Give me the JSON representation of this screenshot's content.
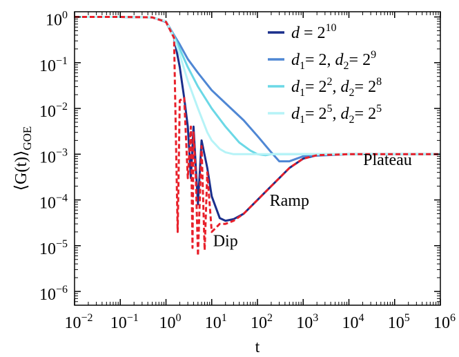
{
  "chart_data": {
    "type": "line",
    "xscale": "log",
    "yscale": "log",
    "xlim": [
      0.01,
      1000000
    ],
    "ylim": [
      5e-07,
      1.3
    ],
    "xlabel": "t",
    "ylabel": "⟨G(t)⟩",
    "ylabel_sub": "GOE",
    "x_ticks": [
      {
        "base": "10",
        "exp": "−2",
        "value": 0.01
      },
      {
        "base": "10",
        "exp": "−1",
        "value": 0.1
      },
      {
        "base": "10",
        "exp": "0",
        "value": 1
      },
      {
        "base": "10",
        "exp": "1",
        "value": 10
      },
      {
        "base": "10",
        "exp": "2",
        "value": 100
      },
      {
        "base": "10",
        "exp": "3",
        "value": 1000
      },
      {
        "base": "10",
        "exp": "4",
        "value": 10000
      },
      {
        "base": "10",
        "exp": "5",
        "value": 100000
      },
      {
        "base": "10",
        "exp": "6",
        "value": 1000000
      }
    ],
    "y_ticks": [
      {
        "base": "10",
        "exp": "0",
        "value": 1
      },
      {
        "base": "10",
        "exp": "−1",
        "value": 0.1
      },
      {
        "base": "10",
        "exp": "−2",
        "value": 0.01
      },
      {
        "base": "10",
        "exp": "−3",
        "value": 0.001
      },
      {
        "base": "10",
        "exp": "−4",
        "value": 0.0001
      },
      {
        "base": "10",
        "exp": "−5",
        "value": 1e-05
      },
      {
        "base": "10",
        "exp": "−6",
        "value": 1e-06
      }
    ],
    "legend_position": "top-right",
    "series": [
      {
        "name": "d = 2^10",
        "legend": {
          "parts": [
            {
              "t": "d",
              "style": "italic"
            },
            {
              "t": " = 2"
            },
            {
              "t": "10",
              "style": "sup"
            }
          ]
        },
        "color": "#1a2f8c",
        "style": "solid",
        "x": [
          0.01,
          0.1,
          0.5,
          1.0,
          1.5,
          2.0,
          2.5,
          3.0,
          3.5,
          4.0,
          5.0,
          6.0,
          8.0,
          10.0,
          15.0,
          20.0,
          30.0,
          50.0,
          100.0,
          200.0,
          500.0,
          1000.0,
          2000.0,
          10000.0,
          100000.0,
          1000000.0
        ],
        "y": [
          1.0,
          1.0,
          0.98,
          0.78,
          0.35,
          0.08,
          0.017,
          0.004,
          0.0003,
          0.004,
          8e-05,
          0.002,
          0.0005,
          0.00012,
          4e-05,
          3.5e-05,
          3.8e-05,
          5e-05,
          0.0001,
          0.0002,
          0.0005,
          0.0008,
          0.00095,
          0.001,
          0.001,
          0.001
        ]
      },
      {
        "name": "d1= 2, d2= 2^9",
        "legend": {
          "parts": [
            {
              "t": "d",
              "style": "italic"
            },
            {
              "t": "1",
              "style": "sub"
            },
            {
              "t": "= 2, "
            },
            {
              "t": "d",
              "style": "italic"
            },
            {
              "t": "2",
              "style": "sub"
            },
            {
              "t": "= 2"
            },
            {
              "t": "9",
              "style": "sup"
            }
          ]
        },
        "color": "#4f87d4",
        "style": "solid",
        "x": [
          0.01,
          0.1,
          0.5,
          1.0,
          1.5,
          2.0,
          3.0,
          5.0,
          10.0,
          20.0,
          50.0,
          100.0,
          200.0,
          300.0,
          500.0,
          1000.0,
          10000.0,
          1000000.0
        ],
        "y": [
          1.0,
          1.0,
          0.98,
          0.8,
          0.4,
          0.25,
          0.12,
          0.06,
          0.025,
          0.013,
          0.0055,
          0.0025,
          0.0011,
          0.0007,
          0.0007,
          0.0009,
          0.001,
          0.001
        ]
      },
      {
        "name": "d1= 2^2, d2= 2^8",
        "legend": {
          "parts": [
            {
              "t": "d",
              "style": "italic"
            },
            {
              "t": "1",
              "style": "sub"
            },
            {
              "t": "= 2"
            },
            {
              "t": "2",
              "style": "sup"
            },
            {
              "t": ", "
            },
            {
              "t": "d",
              "style": "italic"
            },
            {
              "t": "2",
              "style": "sub"
            },
            {
              "t": "= 2"
            },
            {
              "t": "8",
              "style": "sup"
            }
          ]
        },
        "color": "#6bd8e6",
        "style": "solid",
        "x": [
          0.01,
          0.1,
          0.5,
          1.0,
          1.5,
          2.0,
          3.0,
          5.0,
          10.0,
          20.0,
          40.0,
          70.0,
          100.0,
          150.0,
          200.0,
          1000.0,
          1000000.0
        ],
        "y": [
          1.0,
          1.0,
          0.98,
          0.8,
          0.38,
          0.2,
          0.08,
          0.03,
          0.01,
          0.004,
          0.0018,
          0.0012,
          0.001,
          0.00095,
          0.001,
          0.001,
          0.001
        ]
      },
      {
        "name": "d1= 2^5, d2= 2^5",
        "legend": {
          "parts": [
            {
              "t": "d",
              "style": "italic"
            },
            {
              "t": "1",
              "style": "sub"
            },
            {
              "t": "= 2"
            },
            {
              "t": "5",
              "style": "sup"
            },
            {
              "t": ", "
            },
            {
              "t": "d",
              "style": "italic"
            },
            {
              "t": "2",
              "style": "sub"
            },
            {
              "t": "= 2"
            },
            {
              "t": "5",
              "style": "sup"
            }
          ]
        },
        "color": "#b6f3f7",
        "style": "solid",
        "x": [
          0.01,
          0.1,
          0.5,
          1.0,
          1.5,
          2.0,
          3.0,
          5.0,
          8.0,
          10.0,
          15.0,
          20.0,
          30.0,
          50.0,
          100.0,
          1000.0,
          1000000.0
        ],
        "y": [
          1.0,
          1.0,
          0.98,
          0.8,
          0.35,
          0.15,
          0.04,
          0.01,
          0.003,
          0.002,
          0.0013,
          0.0011,
          0.001,
          0.001,
          0.001,
          0.001,
          0.001
        ]
      },
      {
        "name": "GOE theory (red dashed)",
        "legend": null,
        "color": "#e8202a",
        "style": "dashed",
        "x": [
          0.01,
          0.1,
          0.5,
          1.0,
          1.5,
          1.8,
          2.0,
          2.5,
          3.0,
          3.5,
          3.8,
          4.0,
          4.5,
          5.0,
          6.0,
          7.0,
          8.0,
          10.0,
          15.0,
          20.0,
          30.0,
          50.0,
          100.0,
          200.0,
          500.0,
          1000.0,
          2000.0,
          10000.0,
          100000.0,
          1000000.0
        ],
        "y": [
          1.0,
          1.0,
          0.98,
          0.78,
          0.35,
          2e-05,
          0.015,
          0.017,
          0.0003,
          0.004,
          9e-06,
          0.003,
          0.0003,
          6e-06,
          0.0015,
          8e-06,
          0.0004,
          2e-05,
          3e-05,
          3e-05,
          3.5e-05,
          5e-05,
          0.0001,
          0.0002,
          0.0005,
          0.0008,
          0.00095,
          0.001,
          0.001,
          0.001
        ]
      }
    ],
    "annotations": [
      {
        "text": "Dip",
        "x": 20,
        "y": 9.8e-06
      },
      {
        "text": "Ramp",
        "x": 500,
        "y": 7.5e-05
      },
      {
        "text": "Plateau",
        "x": 70000,
        "y": 0.00058
      }
    ]
  }
}
